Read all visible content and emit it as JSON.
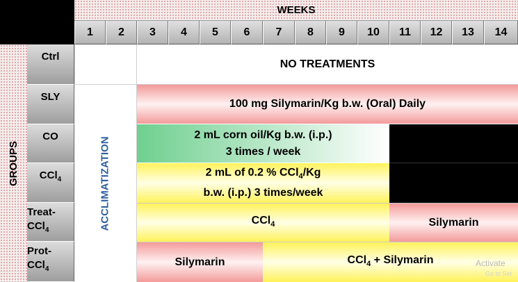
{
  "header": {
    "weeks_label": "WEEKS"
  },
  "weeks": [
    "1",
    "2",
    "3",
    "4",
    "5",
    "6",
    "7",
    "8",
    "9",
    "10",
    "11",
    "12",
    "13",
    "14"
  ],
  "groups_label": "GROUPS",
  "acclimatization_label": "ACCLIMATIZATION",
  "rows": {
    "ctrl": {
      "label": "Ctrl",
      "treatment": "NO TREATMENTS"
    },
    "sly": {
      "label": "SLY",
      "treatment": "100 mg Silymarin/Kg b.w. (Oral) Daily"
    },
    "co": {
      "label": "CO",
      "treatment_line1": "2 mL corn oil/Kg b.w. (i.p.)",
      "treatment_line2": "3 times / week"
    },
    "ccl4": {
      "label_main": "CCl",
      "label_sub": "4",
      "treatment_line1_a": "2 mL of 0.2 % CCl",
      "treatment_line1_sub": "4",
      "treatment_line1_b": "/Kg",
      "treatment_line2": "b.w. (i.p.) 3 times/week"
    },
    "treat": {
      "label_line1": "Treat-",
      "label_line2_main": "CCl",
      "label_line2_sub": "4",
      "phase1_main": "CCl",
      "phase1_sub": "4",
      "phase2": "Silymarin"
    },
    "prot": {
      "label_line1": "Prot-",
      "label_line2_main": "CCl",
      "label_line2_sub": "4",
      "phase1": "Silymarin",
      "phase2_main": "CCl",
      "phase2_sub": "4",
      "phase2_rest": " + Silymarin"
    }
  },
  "watermark": {
    "line1": "Activate",
    "line2": "Go to Set"
  },
  "colors": {
    "red_phase": "#f39a9a",
    "green_phase": "#6fcf8f",
    "yellow_phase": "#fff25a",
    "acclimatization_text": "#2f5f9e",
    "no_dose": "#000000"
  }
}
